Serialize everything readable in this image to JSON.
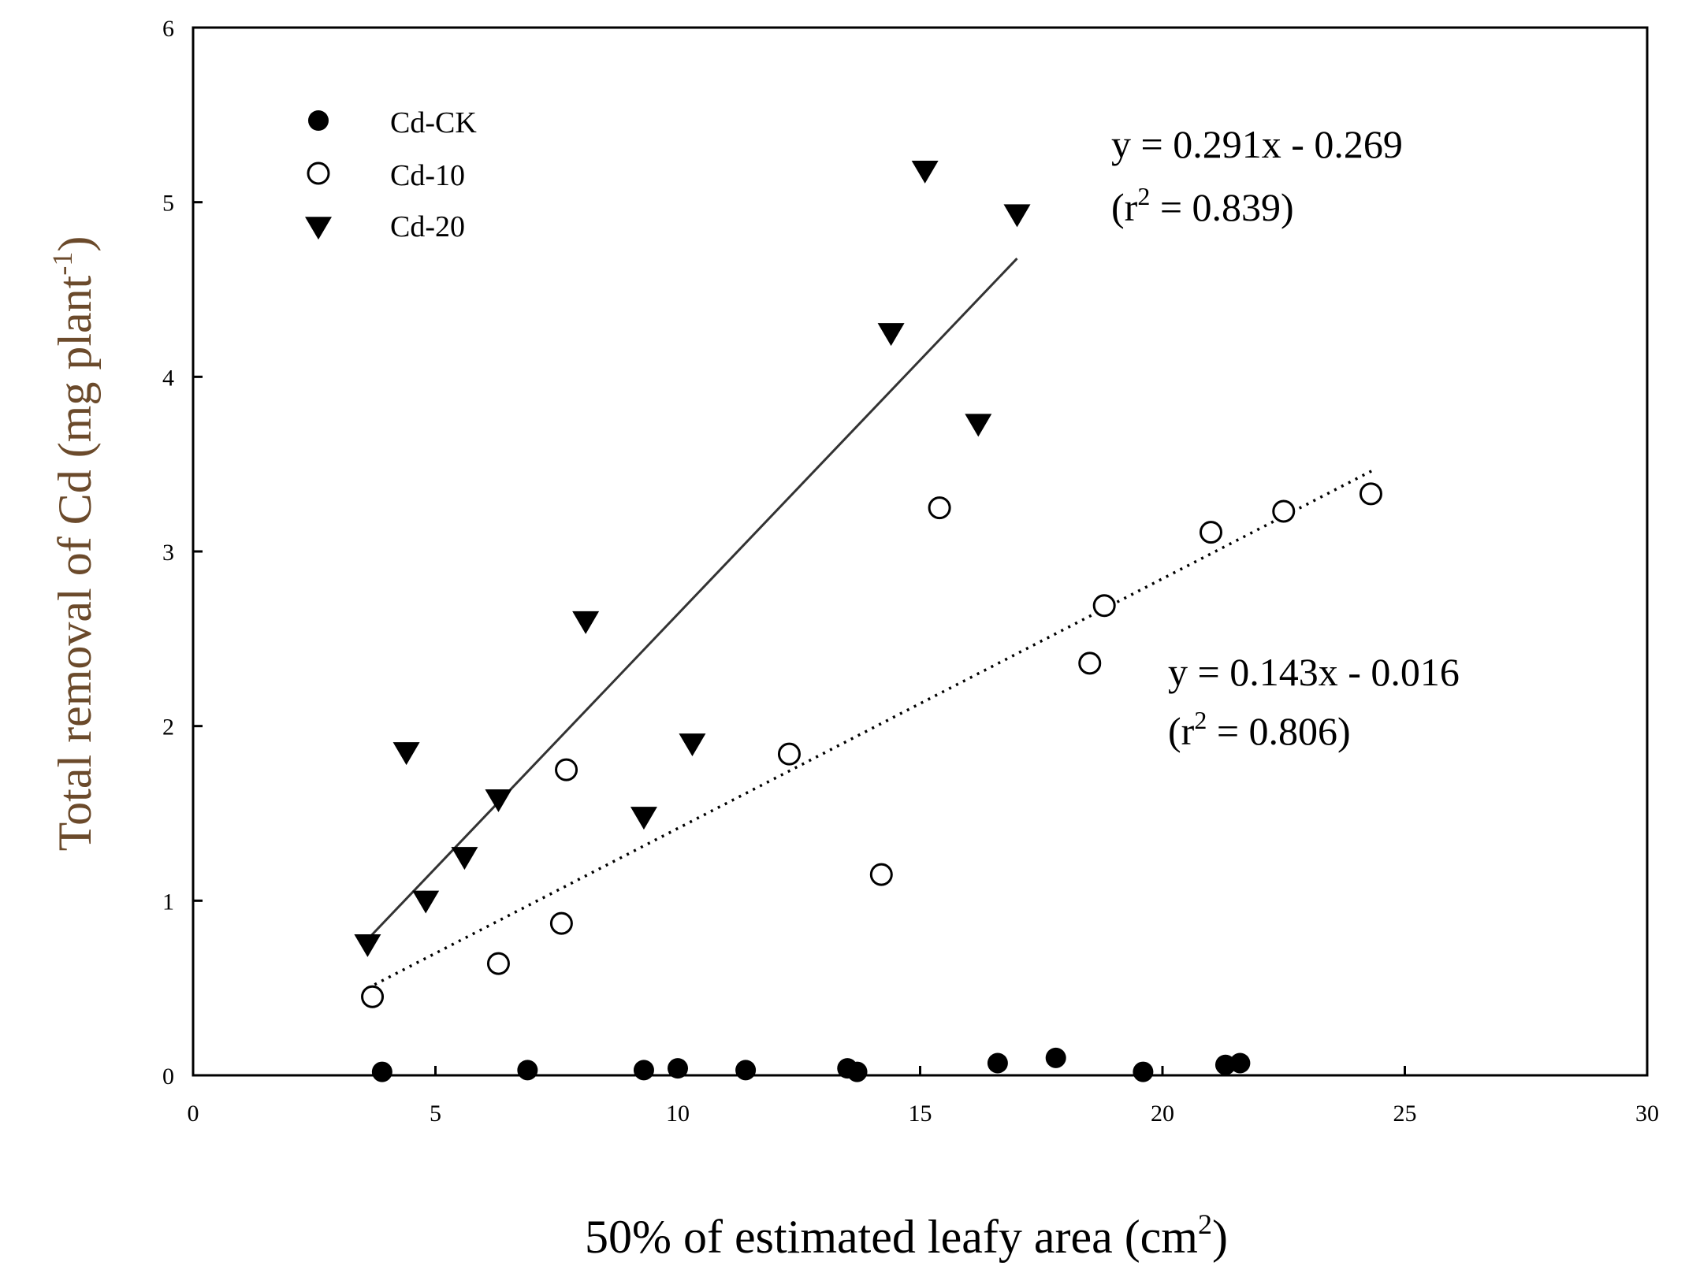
{
  "chart_data": {
    "type": "scatter",
    "xlabel": "50% of estimated leafy area (cm",
    "xlabel_sup": "2",
    "xlabel_tail": ")",
    "ylabel": "Total removal of Cd (mg plant",
    "ylabel_sup": "-1",
    "ylabel_tail": ")",
    "xlim": [
      0,
      30
    ],
    "ylim": [
      0,
      6
    ],
    "x_ticks": [
      0,
      5,
      10,
      15,
      20,
      25,
      30
    ],
    "y_ticks": [
      0,
      1,
      2,
      3,
      4,
      5,
      6
    ],
    "grid": false,
    "legend_position": "top-left",
    "series": [
      {
        "name": "Cd-CK",
        "marker": "filled-circle",
        "color": "#000000",
        "points": [
          [
            3.9,
            0.02
          ],
          [
            6.9,
            0.03
          ],
          [
            9.3,
            0.03
          ],
          [
            10.0,
            0.04
          ],
          [
            11.4,
            0.03
          ],
          [
            13.5,
            0.04
          ],
          [
            13.7,
            0.02
          ],
          [
            16.6,
            0.07
          ],
          [
            17.8,
            0.1
          ],
          [
            19.6,
            0.02
          ],
          [
            21.3,
            0.06
          ],
          [
            21.6,
            0.07
          ]
        ]
      },
      {
        "name": "Cd-10",
        "marker": "open-circle",
        "color": "#000000",
        "points": [
          [
            3.7,
            0.45
          ],
          [
            6.3,
            0.64
          ],
          [
            7.6,
            0.87
          ],
          [
            7.7,
            1.75
          ],
          [
            12.3,
            1.84
          ],
          [
            14.2,
            1.15
          ],
          [
            15.4,
            3.25
          ],
          [
            18.5,
            2.36
          ],
          [
            18.8,
            2.69
          ],
          [
            21.0,
            3.11
          ],
          [
            22.5,
            3.23
          ],
          [
            24.3,
            3.33
          ]
        ],
        "fit": {
          "slope": 0.143,
          "intercept": -0.016,
          "x_range": [
            3.6,
            24.4
          ],
          "style": "dotted"
        }
      },
      {
        "name": "Cd-20",
        "marker": "filled-triangle-down",
        "color": "#000000",
        "points": [
          [
            3.6,
            0.75
          ],
          [
            4.4,
            1.85
          ],
          [
            4.8,
            1.0
          ],
          [
            5.6,
            1.25
          ],
          [
            6.3,
            1.58
          ],
          [
            8.1,
            2.6
          ],
          [
            9.3,
            1.48
          ],
          [
            10.3,
            1.9
          ],
          [
            14.4,
            4.25
          ],
          [
            15.1,
            5.18
          ],
          [
            16.2,
            3.73
          ],
          [
            17.0,
            4.93
          ]
        ],
        "fit": {
          "slope": 0.291,
          "intercept": -0.269,
          "x_range": [
            3.5,
            17.0
          ],
          "style": "solid"
        }
      }
    ],
    "annotations": [
      {
        "line1": "y = 0.291x - 0.269",
        "line2_pre": "(r",
        "line2_sup": "2",
        "line2_post": " = 0.839)"
      },
      {
        "line1": "y = 0.143x - 0.016",
        "line2_pre": "(r",
        "line2_sup": "2",
        "line2_post": " = 0.806)"
      }
    ]
  }
}
